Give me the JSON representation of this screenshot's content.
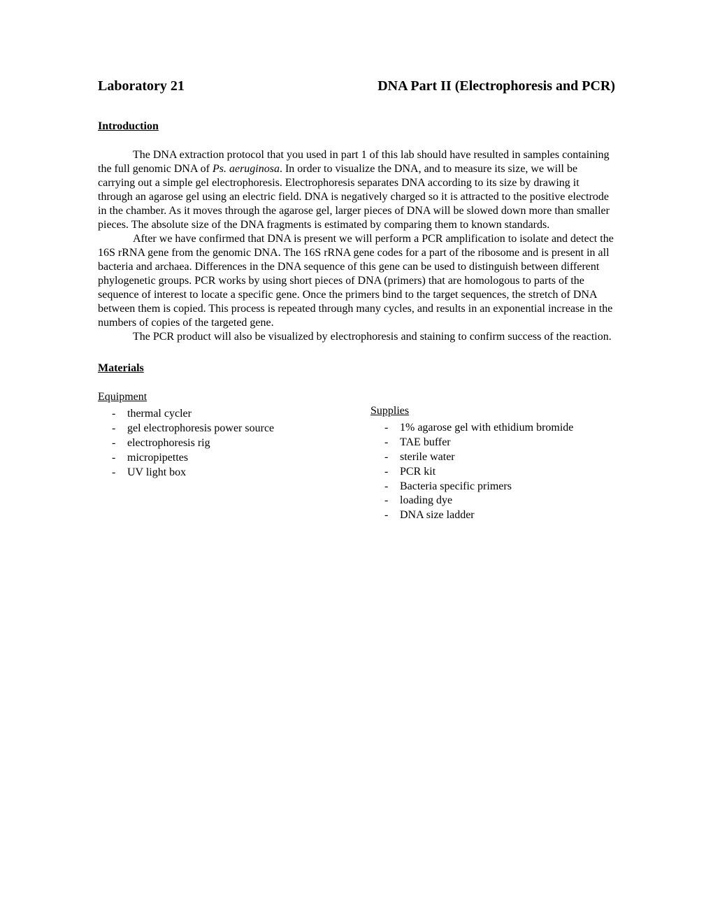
{
  "title_left": "Laboratory 21",
  "title_right": "DNA Part II (Electrophoresis and PCR)",
  "intro_heading": "Introduction",
  "intro_p1_pre": "The DNA extraction protocol that you used in part 1 of this lab should have resulted in samples containing the full genomic DNA of ",
  "intro_p1_italic": "Ps. aeruginosa",
  "intro_p1_post": ".  In order to visualize the DNA, and to measure its size, we will be carrying out a simple gel electrophoresis.  Electrophoresis separates DNA according to its size by drawing it through an agarose gel using an electric field.  DNA is negatively charged so it is attracted to the positive electrode in the chamber.  As it moves through the agarose gel, larger pieces of DNA will be slowed down more than smaller pieces.  The absolute size of the DNA fragments is estimated by comparing them to known standards.",
  "intro_p2": "After we have confirmed that DNA is present we will perform a PCR amplification to isolate and detect the 16S rRNA gene from the genomic DNA.  The 16S rRNA gene codes for a part of the ribosome and is present in all bacteria and archaea.  Differences in the DNA sequence of this gene can be used to distinguish between different phylogenetic groups.  PCR works by using short pieces of DNA (primers) that are homologous to parts of the sequence of interest to locate a specific gene.  Once the primers bind to the target sequences, the stretch of DNA between them is copied.  This process is repeated through many cycles, and results in an exponential increase in the numbers of copies of the targeted gene.",
  "intro_p3": "The PCR product will also be visualized by electrophoresis and staining to confirm success of the reaction.",
  "materials_heading": "Materials",
  "equipment_heading": "Equipment",
  "equipment": [
    "thermal cycler",
    "gel electrophoresis power source",
    "electrophoresis rig",
    "micropipettes",
    "UV light box"
  ],
  "supplies_heading": "Supplies",
  "supplies": [
    "1% agarose gel with ethidium bromide",
    "TAE buffer",
    "sterile water",
    "PCR kit",
    "Bacteria specific primers",
    "loading dye",
    "DNA size ladder"
  ]
}
